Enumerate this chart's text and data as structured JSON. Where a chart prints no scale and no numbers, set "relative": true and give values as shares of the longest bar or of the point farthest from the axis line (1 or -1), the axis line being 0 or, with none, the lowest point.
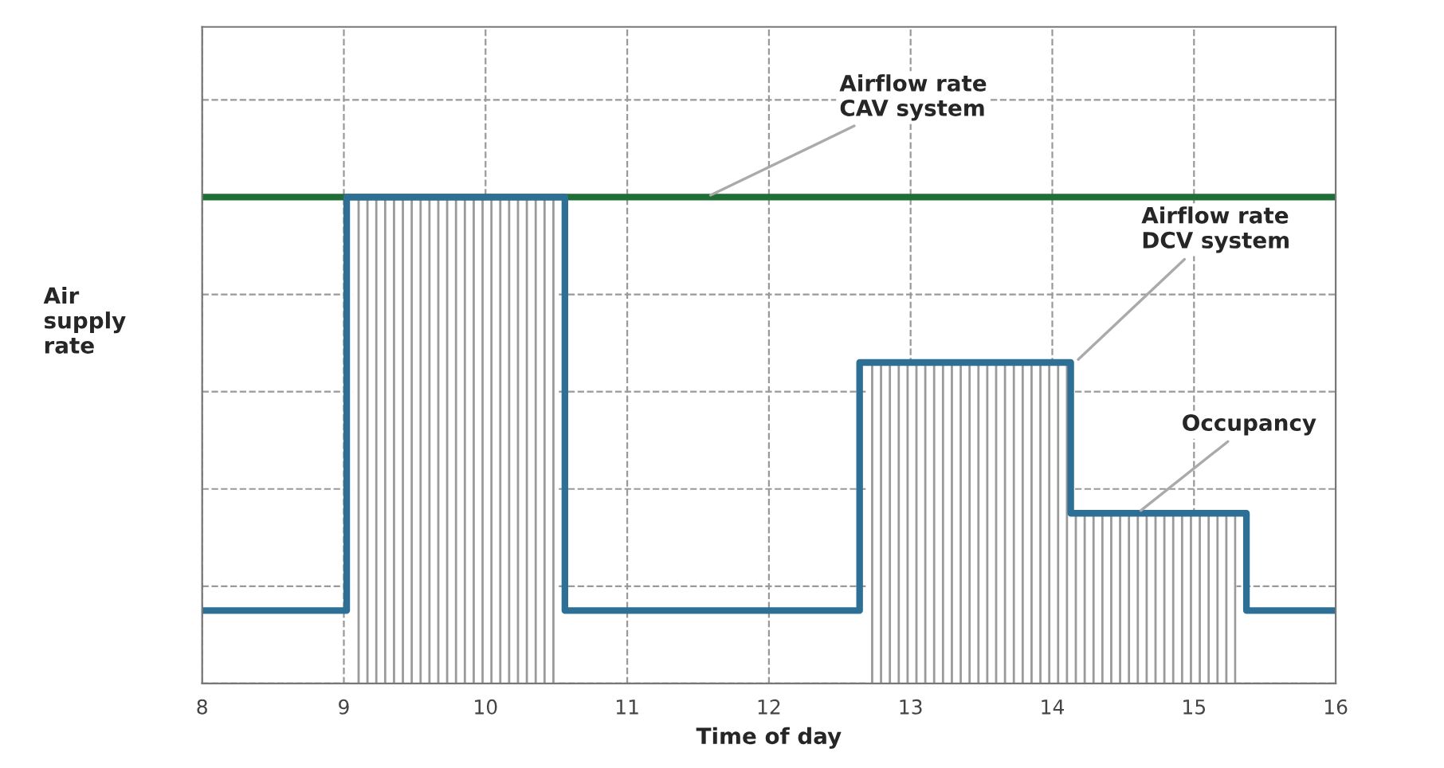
{
  "chart_data": {
    "type": "step",
    "relative": true,
    "xlabel": "Time of day",
    "ylabel": "Air\nsupply\nrate",
    "xlim": [
      8,
      16
    ],
    "xticks": [
      8,
      9,
      10,
      11,
      12,
      13,
      14,
      15,
      16
    ],
    "grid": true,
    "tick_labels": "x",
    "legend": false,
    "series": [
      {
        "type": "area",
        "color": "#9a9a9a",
        "x": [
          9.06,
          10.51,
          12.69,
          14.13,
          15.3
        ],
        "values": [
          1,
          0,
          0.66,
          0.35,
          0
        ]
      },
      {
        "type": "line",
        "color": "#1f6e35",
        "x": [
          8,
          16
        ],
        "values": [
          1,
          1
        ]
      },
      {
        "color": "#2e6f96",
        "x": [
          8,
          9.02,
          10.56,
          12.64,
          14.13,
          15.37,
          16
        ],
        "values": [
          0.15,
          1,
          0.15,
          0.66,
          0.35,
          0.15,
          0.15
        ]
      }
    ],
    "annotations": [
      {
        "text": "Airflow rate\nCAV system",
        "x": 11.56,
        "y": 1
      },
      {
        "text": "Airflow rate\nDCV system",
        "x": 14.16,
        "y": 0.66
      },
      {
        "text": "Occupancy",
        "x": 14.6,
        "y": 0.35
      }
    ]
  }
}
